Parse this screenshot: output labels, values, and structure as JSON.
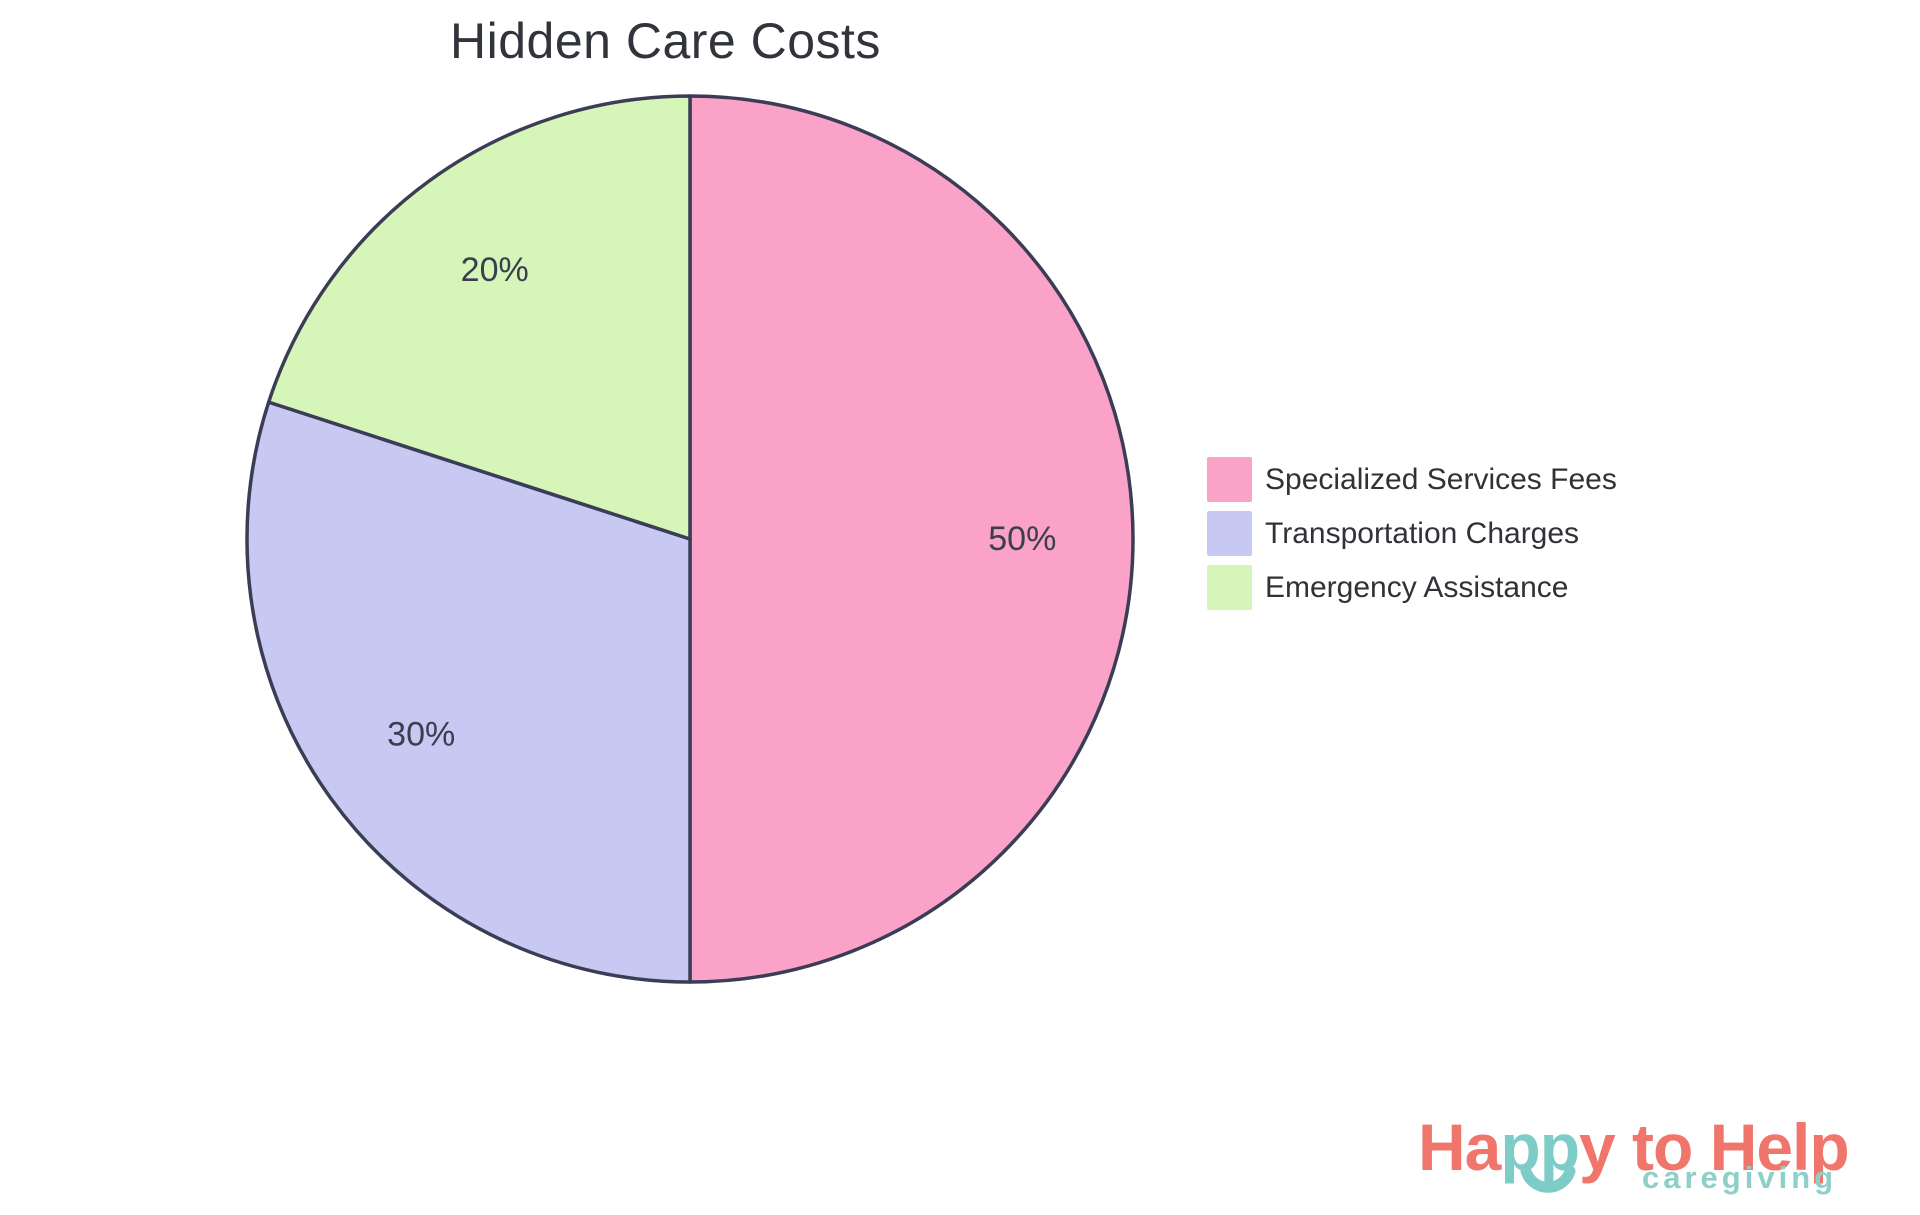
{
  "chart_data": {
    "type": "pie",
    "title": "Hidden Care Costs",
    "categories": [
      "Specialized Services Fees",
      "Transportation Charges",
      "Emergency Assistance"
    ],
    "values": [
      50,
      30,
      20
    ],
    "slices": [
      {
        "label": "Specialized Services Fees",
        "value": 50,
        "pct_label": "50%",
        "color": "#FAA2C8"
      },
      {
        "label": "Transportation Charges",
        "value": 30,
        "pct_label": "30%",
        "color": "#C8C9F2"
      },
      {
        "label": "Emergency Assistance",
        "value": 20,
        "pct_label": "20%",
        "color": "#D6F5B8"
      }
    ],
    "start_angle_deg": 0,
    "direction": "clockwise",
    "stroke_color": "#3A3D55",
    "label_color": "#3B3E4E",
    "legend_position": "right",
    "grid": false
  },
  "logo": {
    "segments": [
      {
        "text": "Ha",
        "color": "#F0766C"
      },
      {
        "text": "pp",
        "color": "#7ECCC8"
      },
      {
        "text": "y to Help",
        "color": "#F0766C"
      }
    ],
    "subtitle": "caregiving",
    "subtitle_color": "#8FCFC9",
    "smile_color": "#7ECCC8"
  }
}
